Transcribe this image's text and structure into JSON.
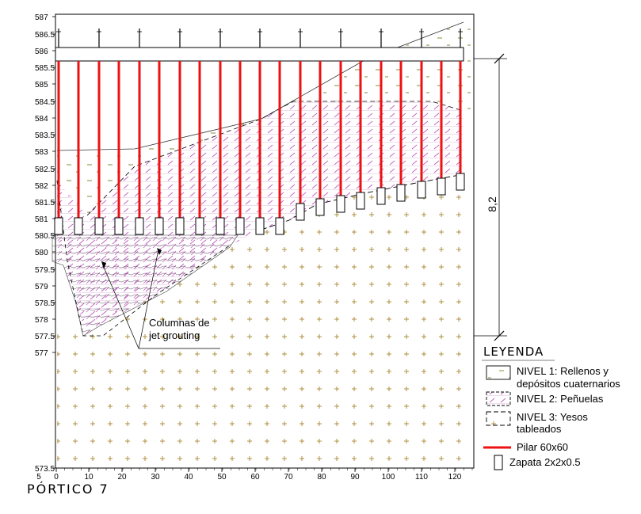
{
  "title": "PÓRTICO 7",
  "y_axis_ticks": [
    "587",
    "586.5",
    "586",
    "585.5",
    "585",
    "584.5",
    "584",
    "583.5",
    "583",
    "582.5",
    "582",
    "581.5",
    "581",
    "580.5",
    "580",
    "579.5",
    "579",
    "578.5",
    "578",
    "577.5",
    "577",
    "573.5"
  ],
  "x_axis_ticks": [
    "5",
    "0",
    "10",
    "20",
    "30",
    "40",
    "50",
    "60",
    "70",
    "80",
    "90",
    "100",
    "110",
    "120"
  ],
  "dimension_label": "8,2",
  "annotation": [
    "Columnas de",
    "jet grouting"
  ],
  "legend": {
    "title": "LEYENDA",
    "items": [
      {
        "lines": [
          "NIVEL 1: Rellenos y",
          "depósitos cuaternarios"
        ],
        "kind": "nivel1"
      },
      {
        "lines": [
          "NIVEL 2: Peñuelas"
        ],
        "kind": "nivel2"
      },
      {
        "lines": [
          "NIVEL 3: Yesos",
          "tableados"
        ],
        "kind": "nivel3"
      },
      {
        "lines": [
          "Pilar 60x60"
        ],
        "kind": "pilar"
      },
      {
        "lines": [
          "Zapata 2x2x0.5"
        ],
        "kind": "zapata"
      }
    ]
  },
  "colors": {
    "pilar": "#ee1111",
    "nivel1_mark": "#8a8a3a",
    "nivel2_hatch": "#c060c0",
    "nivel3_mark": "#b09040"
  }
}
